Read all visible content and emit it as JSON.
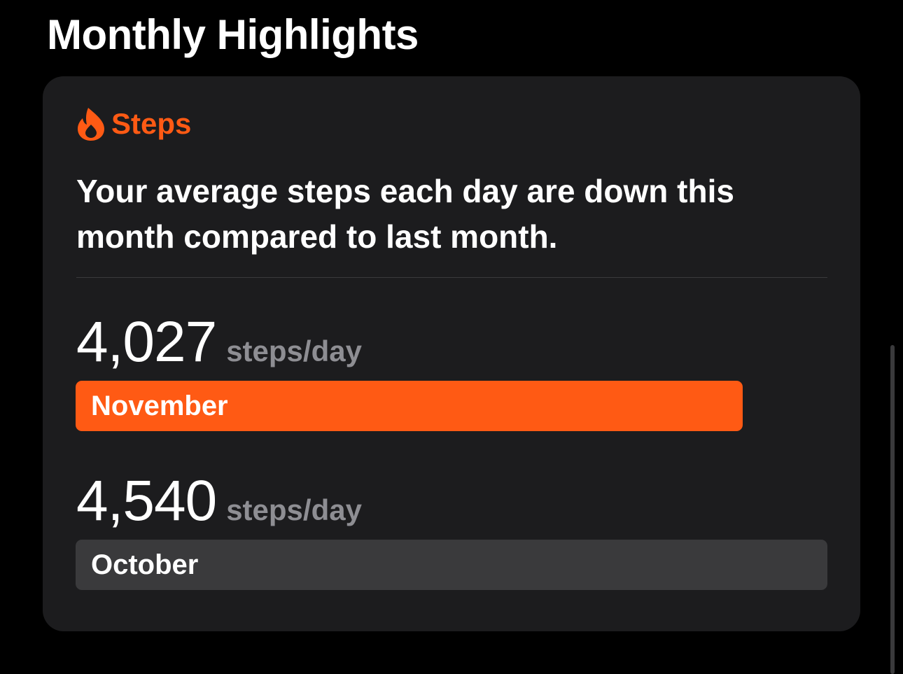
{
  "section": {
    "title": "Monthly Highlights"
  },
  "card": {
    "label": "Steps",
    "icon": "flame-icon",
    "summary": "Your average steps each day are down this month compared to last month.",
    "colors": {
      "accent": "#ff5a14",
      "card_background": "#1c1c1e",
      "secondary_bar": "#3a3a3c",
      "unit_text": "#8e8e93"
    },
    "metrics": [
      {
        "value": "4,027",
        "unit": "steps/day",
        "month": "November",
        "fill_fraction": 0.887
      },
      {
        "value": "4,540",
        "unit": "steps/day",
        "month": "October",
        "fill_fraction": 1.0
      }
    ]
  }
}
